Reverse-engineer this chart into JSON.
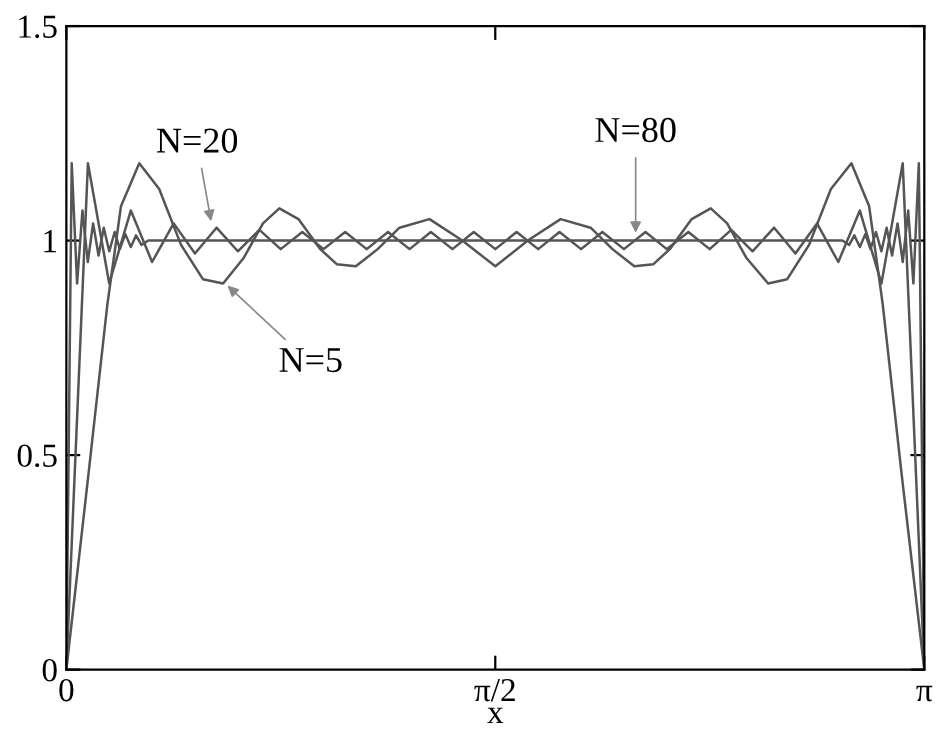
{
  "chart_data": {
    "type": "line",
    "xlabel": "x",
    "xlim": [
      0,
      3.142
    ],
    "ylim": [
      0,
      1.5
    ],
    "xticks": [
      0,
      {
        "value": 1.5708,
        "label": "π/2"
      },
      {
        "value": 3.142,
        "label": "π"
      }
    ],
    "yticks": [
      0,
      0.5,
      1,
      1.5
    ],
    "grid": false,
    "legend": false,
    "marker": "none",
    "line_style": "solid",
    "series": [
      {
        "color": "#555555",
        "x": [
          0,
          0.08,
          0.15,
          0.2,
          0.267,
          0.34,
          0.42,
          0.5,
          0.574,
          0.65,
          0.72,
          0.78,
          0.85,
          0.93,
          0.99,
          1.06,
          1.14,
          1.22,
          1.33,
          1.45,
          1.571,
          1.69,
          1.81,
          1.92,
          2.0,
          2.08,
          2.15,
          2.21,
          2.29,
          2.36,
          2.42,
          2.49,
          2.57,
          2.64,
          2.72,
          2.8,
          2.875,
          2.94,
          2.99,
          3.06,
          3.142
        ],
        "values": [
          0,
          0.45,
          0.85,
          1.08,
          1.18,
          1.12,
          0.99,
          0.91,
          0.9,
          0.96,
          1.04,
          1.075,
          1.05,
          0.98,
          0.945,
          0.94,
          0.98,
          1.03,
          1.05,
          1.0,
          0.94,
          1.0,
          1.05,
          1.03,
          0.98,
          0.94,
          0.945,
          0.98,
          1.05,
          1.075,
          1.04,
          0.96,
          0.9,
          0.91,
          0.99,
          1.12,
          1.18,
          1.08,
          0.85,
          0.45,
          0
        ]
      },
      {
        "color": "#555555",
        "x": [
          0,
          0.079,
          0.157,
          0.236,
          0.314,
          0.393,
          0.471,
          0.55,
          0.628,
          0.707,
          0.785,
          0.864,
          0.942,
          1.021,
          1.1,
          1.178,
          1.257,
          1.335,
          1.414,
          1.492,
          1.571,
          1.649,
          1.728,
          1.806,
          1.885,
          1.963,
          2.042,
          2.121,
          2.199,
          2.278,
          2.356,
          2.435,
          2.513,
          2.592,
          2.67,
          2.749,
          2.827,
          2.906,
          2.985,
          3.063,
          3.142
        ],
        "values": [
          0,
          1.18,
          0.9,
          1.07,
          0.95,
          1.04,
          0.97,
          1.03,
          0.975,
          1.025,
          0.98,
          1.02,
          0.98,
          1.02,
          0.98,
          1.02,
          0.98,
          1.02,
          0.98,
          1.02,
          0.98,
          1.02,
          0.98,
          1.02,
          0.98,
          1.02,
          0.98,
          1.02,
          0.98,
          1.02,
          0.98,
          1.025,
          0.975,
          1.03,
          0.97,
          1.04,
          0.95,
          1.07,
          0.9,
          1.18,
          0
        ]
      },
      {
        "color": "#555555",
        "x": [
          0,
          0.0196,
          0.0393,
          0.0589,
          0.0785,
          0.098,
          0.118,
          0.137,
          0.157,
          0.177,
          0.196,
          0.216,
          0.236,
          0.255,
          0.275,
          0.3,
          1.571,
          2.842,
          2.867,
          2.886,
          2.906,
          2.926,
          2.945,
          2.965,
          2.985,
          3.004,
          3.024,
          3.044,
          3.063,
          3.083,
          3.102,
          3.122,
          3.142
        ],
        "values": [
          0,
          1.18,
          0.9,
          1.07,
          0.95,
          1.04,
          0.965,
          1.03,
          0.975,
          1.02,
          0.98,
          1.015,
          0.985,
          1.012,
          0.99,
          1.0,
          1.0,
          1.0,
          0.99,
          1.012,
          0.985,
          1.015,
          0.98,
          1.02,
          0.975,
          1.03,
          0.965,
          1.04,
          0.95,
          1.07,
          0.9,
          1.18,
          0
        ]
      }
    ],
    "annotations": [
      {
        "text": "N=20",
        "x": 0.53,
        "y": 1.045
      },
      {
        "text": "N=5",
        "x": 0.59,
        "y": 0.895
      },
      {
        "text": "N=80",
        "x": 2.085,
        "y": 1.018
      }
    ]
  }
}
